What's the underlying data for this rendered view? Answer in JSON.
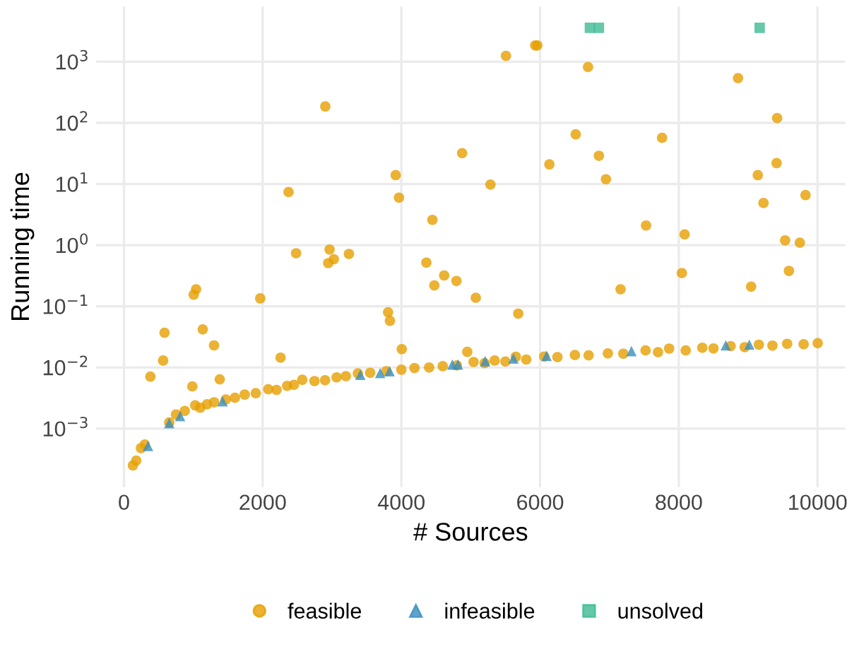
{
  "chart_data": {
    "type": "scatter",
    "xlabel": "# Sources",
    "ylabel": "Running time",
    "log": "y",
    "grid": true,
    "legend": "bottom",
    "xlim": [
      -400,
      10400
    ],
    "ylim": [
      0.00011,
      8000
    ],
    "xticks": [
      0,
      2000,
      4000,
      6000,
      8000,
      10000
    ],
    "yticks": [
      {
        "value": 0.001,
        "label": "10$^{−3}$"
      },
      {
        "value": 0.01,
        "label": "10$^{−2}$"
      },
      {
        "value": 0.1,
        "label": "10$^{−1}$"
      },
      {
        "value": 1,
        "label": "10$^{0}$"
      },
      {
        "value": 10,
        "label": "10$^{1}$"
      },
      {
        "value": 100,
        "label": "10$^{2}$"
      },
      {
        "value": 1000,
        "label": "10$^{3}$"
      }
    ],
    "series": [
      {
        "name": "feasible",
        "color": "#e69f00",
        "marker": "circle",
        "x": [
          2903,
          2373,
          2482,
          2965,
          2945,
          3026,
          3244,
          3918,
          3965,
          4876,
          4447,
          4360,
          4475,
          4617,
          4794,
          1040,
          1006,
          1965,
          5073,
          5508,
          5930,
          5960,
          6691,
          8854,
          9418,
          6514,
          7759,
          6134,
          6848,
          6950,
          9410,
          9139,
          5284,
          9221,
          9827,
          7528,
          8084,
          9533,
          9745,
          8044,
          9588,
          7160,
          9043,
          585,
          565,
          381,
          986,
          1136,
          1299,
          1381,
          2258,
          3808,
          3835,
          4006,
          4950,
          5685,
          5650,
          129,
          177,
          245,
          300,
          653,
          877,
          1027,
          1197,
          1469,
          1741,
          2081,
          2353,
          2571,
          2747,
          3066,
          3373,
          3781,
          4189,
          4597,
          5041,
          5345,
          6059,
          6502,
          6977,
          7521,
          7861,
          8339,
          8747,
          9154,
          9562,
          10003,
          750,
          1100,
          1300,
          1600,
          1900,
          2200,
          2450,
          2900,
          3200,
          3550,
          4000,
          4400,
          4800,
          5200,
          5500,
          5800,
          6250,
          6700,
          7200,
          7700,
          8100,
          8500,
          8950,
          9350,
          9800
        ],
        "values": [
          186,
          7.4,
          0.74,
          0.85,
          0.51,
          0.59,
          0.72,
          14,
          6.0,
          32,
          2.6,
          0.52,
          0.22,
          0.32,
          0.26,
          0.19,
          0.155,
          0.135,
          0.138,
          1250,
          1850,
          1850,
          820,
          540,
          120,
          65,
          57,
          21,
          29,
          12,
          22,
          14,
          9.8,
          4.9,
          6.6,
          2.1,
          1.5,
          1.2,
          1.1,
          0.35,
          0.38,
          0.19,
          0.21,
          0.037,
          0.013,
          0.0071,
          0.0049,
          0.042,
          0.023,
          0.0064,
          0.0145,
          0.08,
          0.058,
          0.02,
          0.018,
          0.076,
          0.015,
          0.00025,
          0.0003,
          0.00048,
          0.00055,
          0.00126,
          0.00195,
          0.0024,
          0.0025,
          0.003,
          0.0036,
          0.0044,
          0.005,
          0.0063,
          0.006,
          0.0069,
          0.008,
          0.0087,
          0.0098,
          0.0105,
          0.0123,
          0.013,
          0.0151,
          0.016,
          0.017,
          0.019,
          0.0204,
          0.021,
          0.0224,
          0.0236,
          0.0244,
          0.025,
          0.0017,
          0.0022,
          0.0027,
          0.0032,
          0.0038,
          0.0043,
          0.0052,
          0.0062,
          0.0072,
          0.0082,
          0.0092,
          0.01,
          0.0108,
          0.0118,
          0.0125,
          0.0135,
          0.0148,
          0.0158,
          0.0168,
          0.0178,
          0.019,
          0.0205,
          0.0215,
          0.0228,
          0.024
        ]
      },
      {
        "name": "infeasible",
        "color": "#3a8fbd",
        "marker": "triangle",
        "x": [
          347,
          653,
          810,
          1422,
          3408,
          3694,
          3830,
          4735,
          4816,
          5208,
          5616,
          6094,
          7317,
          8677,
          9017
        ],
        "values": [
          0.00052,
          0.00123,
          0.0016,
          0.0028,
          0.0076,
          0.0081,
          0.0087,
          0.0112,
          0.0112,
          0.0127,
          0.014,
          0.0155,
          0.0185,
          0.023,
          0.0236
        ]
      },
      {
        "name": "unsolved",
        "color": "#3dba93",
        "marker": "square",
        "x": [
          6718,
          6848,
          9166
        ],
        "values": [
          3600,
          3600,
          3600
        ]
      }
    ]
  }
}
